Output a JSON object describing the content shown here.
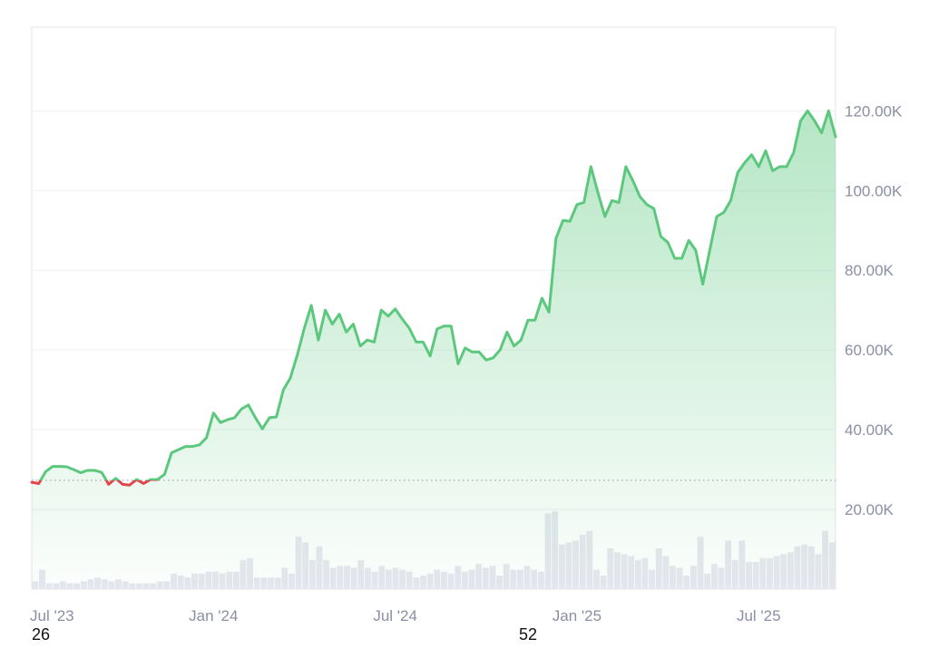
{
  "chart_data": {
    "type": "area",
    "y_unit_suffix": "K",
    "y_ticks": [
      "20.00K",
      "40.00K",
      "60.00K",
      "80.00K",
      "100.00K",
      "120.00K"
    ],
    "y_tick_values": [
      20,
      40,
      60,
      80,
      100,
      120
    ],
    "ylim": [
      0,
      141
    ],
    "x_ticks": [
      {
        "label": "Jul '23",
        "index": 0
      },
      {
        "label": "Jan '24",
        "index": 26
      },
      {
        "label": "Jul '24",
        "index": 52
      },
      {
        "label": "Jan '25",
        "index": 78
      },
      {
        "label": "Jul '25",
        "index": 104
      }
    ],
    "x_sub_labels": [
      {
        "label": "26",
        "index": 0
      },
      {
        "label": "52",
        "index": 71
      }
    ],
    "baseline": 27.3,
    "grid": true,
    "colors": {
      "up": "#5cc87e",
      "down": "#e0474c",
      "fill_top": "#5cc87e",
      "volume": "#e6e7ef",
      "grid": "#eef0f3",
      "baseline_dots": "#9aa0aa",
      "frame": "#e4e6ea"
    },
    "price": [
      26.8,
      26.5,
      29.5,
      30.8,
      30.8,
      30.7,
      30.0,
      29.2,
      29.8,
      29.8,
      29.3,
      26.3,
      27.8,
      26.3,
      26.1,
      27.5,
      26.5,
      27.5,
      27.5,
      28.8,
      34.2,
      35.0,
      35.8,
      35.8,
      36.2,
      38.0,
      44.2,
      41.8,
      42.5,
      43.0,
      45.2,
      46.2,
      43.0,
      40.2,
      43.0,
      43.2,
      50.0,
      53.0,
      58.8,
      65.5,
      71.2,
      62.5,
      70.0,
      66.5,
      69.0,
      64.5,
      66.5,
      61.0,
      62.5,
      62.0,
      70.0,
      68.5,
      70.3,
      67.8,
      65.5,
      62.0,
      62.0,
      58.5,
      65.3,
      66.0,
      66.0,
      56.5,
      60.5,
      59.5,
      59.5,
      57.5,
      58.0,
      60.0,
      64.5,
      61.0,
      62.5,
      67.5,
      67.5,
      73.0,
      69.5,
      88.0,
      92.5,
      92.3,
      96.5,
      97.0,
      106.0,
      99.5,
      93.5,
      97.5,
      97.0,
      106.0,
      102.5,
      98.5,
      96.5,
      95.5,
      88.5,
      87.0,
      83.0,
      83.0,
      87.5,
      85.0,
      76.5,
      85.0,
      93.5,
      94.5,
      97.5,
      104.5,
      107.0,
      109.0,
      106.0,
      110.0,
      105.0,
      106.0,
      106.0,
      109.5,
      117.5,
      120.0,
      117.5,
      114.5,
      120.0,
      113.5
    ],
    "volume": [
      2.0,
      5.0,
      1.5,
      1.5,
      2.0,
      1.5,
      1.5,
      2.0,
      2.5,
      3.0,
      2.5,
      2.0,
      2.5,
      2.0,
      1.5,
      1.5,
      1.5,
      1.5,
      2.0,
      2.0,
      4.0,
      3.5,
      3.0,
      4.0,
      4.0,
      4.5,
      4.5,
      4.0,
      4.5,
      4.5,
      7.5,
      8.0,
      3.0,
      3.0,
      3.0,
      3.0,
      5.5,
      4.0,
      13.5,
      12.0,
      7.5,
      11.0,
      7.5,
      5.5,
      6.0,
      6.0,
      5.5,
      7.5,
      5.5,
      4.5,
      6.0,
      5.0,
      5.5,
      5.0,
      4.5,
      3.0,
      3.5,
      4.0,
      5.0,
      4.5,
      4.0,
      6.0,
      4.5,
      5.0,
      6.5,
      5.5,
      6.0,
      3.5,
      6.5,
      5.0,
      5.0,
      6.0,
      5.0,
      4.5,
      19.5,
      20.0,
      11.5,
      12.0,
      12.5,
      14.0,
      15.0,
      5.0,
      3.5,
      10.5,
      9.5,
      9.0,
      8.5,
      7.5,
      8.0,
      5.0,
      10.5,
      8.5,
      6.0,
      5.5,
      3.5,
      6.0,
      13.5,
      4.0,
      6.5,
      5.5,
      12.5,
      7.5,
      12.5,
      7.0,
      7.0,
      8.0,
      8.0,
      8.5,
      9.0,
      9.5,
      11.0,
      11.5,
      11.0,
      9.0,
      15.0,
      12.0
    ],
    "volume_max": 21
  }
}
